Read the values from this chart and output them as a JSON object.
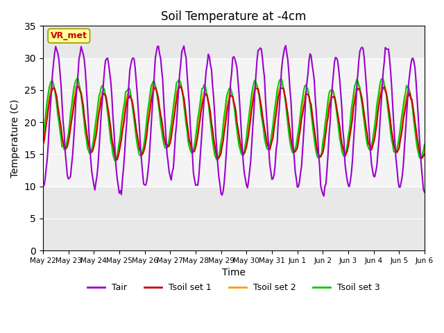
{
  "title": "Soil Temperature at -4cm",
  "xlabel": "Time",
  "ylabel": "Temperature (C)",
  "ylim": [
    0,
    35
  ],
  "yticks": [
    0,
    5,
    10,
    15,
    20,
    25,
    30,
    35
  ],
  "background_color": "#ffffff",
  "plot_bg_color": "#e8e8e8",
  "shaded_band": [
    10,
    30
  ],
  "legend_labels": [
    "Tair",
    "Tsoil set 1",
    "Tsoil set 2",
    "Tsoil set 3"
  ],
  "legend_colors": [
    "#9900cc",
    "#cc0000",
    "#ff9900",
    "#00cc00"
  ],
  "annotation_text": "VR_met",
  "annotation_color": "#cc0000",
  "annotation_bg": "#ffff99",
  "x_tick_labels": [
    "May 22",
    "May 23",
    "May 24",
    "May 25",
    "May 26",
    "May 27",
    "May 28",
    "May 29",
    "May 30",
    "May 31",
    "Jun 1",
    "Jun 2",
    "Jun 3",
    "Jun 4",
    "Jun 5",
    "Jun 6"
  ],
  "x_tick_positions": [
    0,
    1,
    2,
    3,
    4,
    5,
    6,
    7,
    8,
    9,
    10,
    11,
    12,
    13,
    14,
    15
  ],
  "xlim": [
    0,
    15
  ],
  "n_points": 361
}
